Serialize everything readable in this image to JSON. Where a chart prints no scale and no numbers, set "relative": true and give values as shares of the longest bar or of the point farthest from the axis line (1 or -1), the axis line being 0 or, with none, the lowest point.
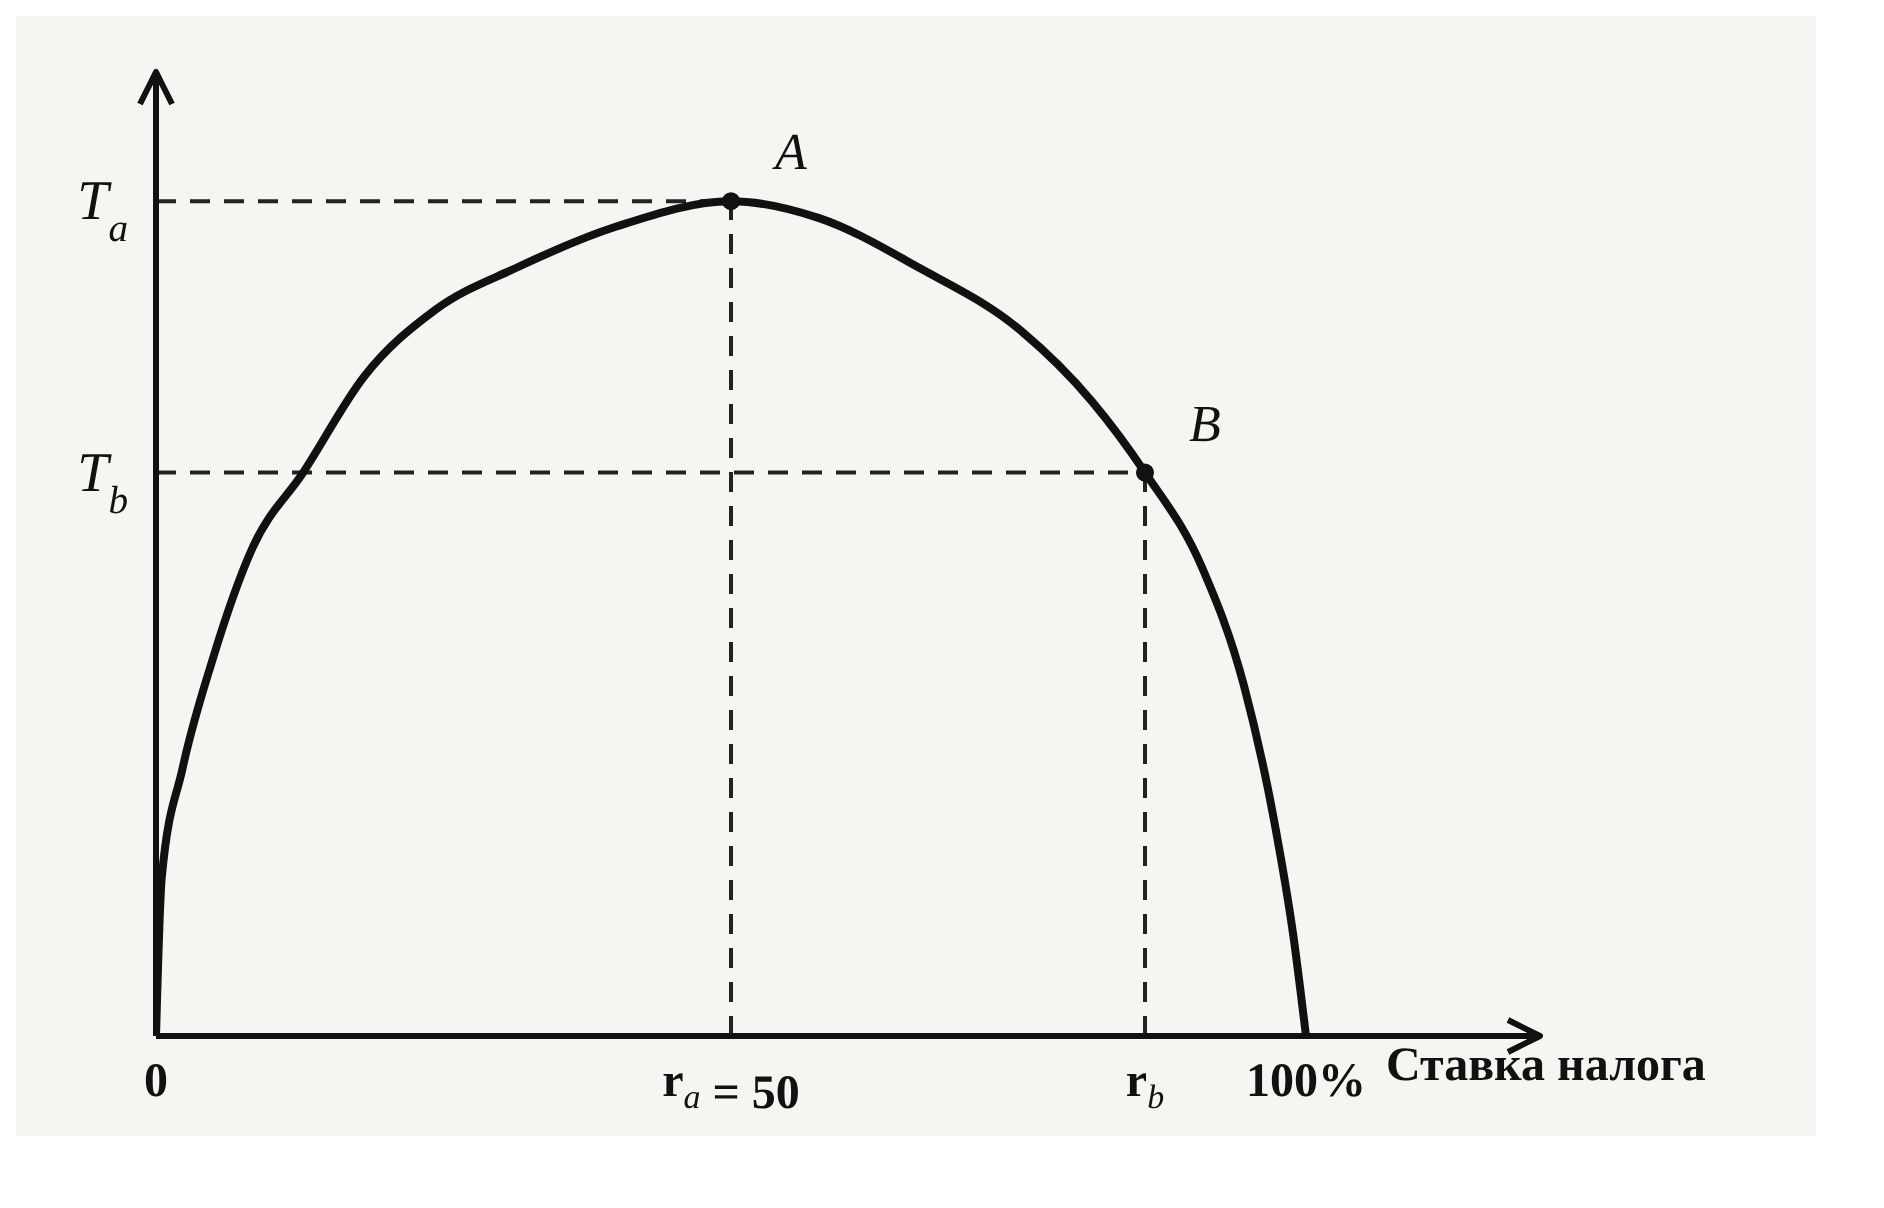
{
  "chart_data": {
    "type": "line",
    "relative": true,
    "xlabel": "Ставка налога",
    "xlim": [
      0,
      120
    ],
    "xticks": [
      0,
      {
        "value": 50,
        "label": "r$_{a}$ = 50"
      },
      {
        "value": 86,
        "label": "r$_{b}$"
      },
      {
        "value": 100,
        "label": "100%"
      }
    ],
    "series": [
      {
        "color": "#111111",
        "marker": "none",
        "line_style": "solid",
        "x": [
          0,
          0.5,
          2.3,
          4.9,
          8.4,
          12.8,
          18.1,
          24.3,
          31.3,
          40.1,
          50,
          57.6,
          66.4,
          75.2,
          81.4,
          86,
          91,
          94.6,
          97.2,
          98.9,
          100
        ],
        "values": [
          0,
          0.19,
          0.32,
          0.45,
          0.585,
          0.675,
          0.79,
          0.87,
          0.92,
          0.97,
          1,
          0.98,
          0.92,
          0.845,
          0.76,
          0.675,
          0.56,
          0.42,
          0.26,
          0.12,
          0
        ]
      },
      {
        "type": "scatter",
        "color": "#111111",
        "marker": "circle",
        "x": [
          50,
          86
        ],
        "values": [
          1,
          0.675
        ]
      }
    ],
    "ref_lines": [
      {
        "axis": "y",
        "value": 1,
        "label": "T$_{a}$",
        "line_style": "dashed",
        "color": "#222222"
      },
      {
        "axis": "y",
        "value": 0.675,
        "label": "T$_{b}$",
        "line_style": "dashed",
        "color": "#222222"
      },
      {
        "axis": "x",
        "value": 50,
        "line_style": "dashed",
        "color": "#222222"
      },
      {
        "axis": "x",
        "value": 86,
        "line_style": "dashed",
        "color": "#222222"
      }
    ],
    "annotations": [
      {
        "text": "A",
        "x": 50,
        "y": 1
      },
      {
        "text": "B",
        "x": 86,
        "y": 0.675
      }
    ]
  }
}
